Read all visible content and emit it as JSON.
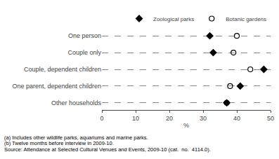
{
  "chart_data": {
    "type": "dot",
    "orientation": "horizontal",
    "categories": [
      "One person",
      "Couple only",
      "Couple, dependent children",
      "One parent, dependent children",
      "Other households"
    ],
    "series": [
      {
        "name": "Zoological parks",
        "color": "#000000",
        "marker": "diamond",
        "values": [
          32,
          33,
          48,
          41,
          37
        ]
      },
      {
        "name": "Botanic gardens",
        "color": "#000000",
        "marker": "circle-open",
        "values": [
          40,
          39,
          44,
          38,
          37
        ]
      }
    ],
    "xlabel": "%",
    "xlim": [
      0,
      50
    ],
    "xticks": [
      0,
      10,
      20,
      30,
      40,
      50
    ],
    "grid": true,
    "legend": "top right",
    "annotations": [
      "(a) Includes other wildlife parks, aquariums and marine parks.",
      "(b) Twelve months before interview in 2009-10.",
      "Source: Attendance at Selected Cultural Venues and Events, 2009-10 (cat.  no.  4114.0)."
    ]
  }
}
